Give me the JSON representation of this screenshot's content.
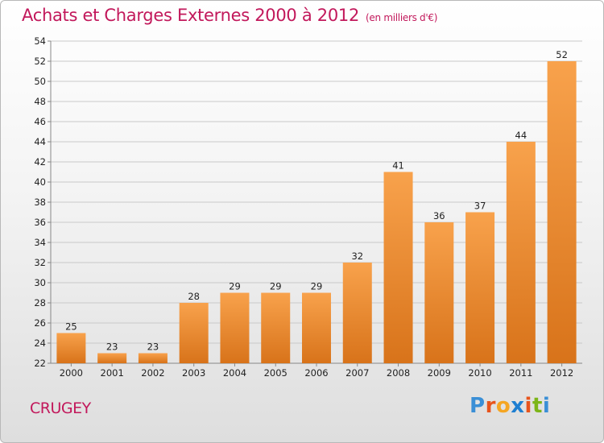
{
  "header": {
    "title": "Achats et Charges Externes 2000 à 2012",
    "subtitle": "(en milliers d'€)"
  },
  "footer": {
    "commune": "CRUGEY",
    "logo_letters": [
      "P",
      "r",
      "o",
      "x",
      "i",
      "t",
      "i"
    ],
    "logo_colors": [
      "#3a8fd6",
      "#e8541c",
      "#f5a623",
      "#1e7fd1",
      "#e8541c",
      "#7cb518",
      "#3a8fd6"
    ]
  },
  "chart_data": {
    "type": "bar",
    "categories": [
      "2000",
      "2001",
      "2002",
      "2003",
      "2004",
      "2005",
      "2006",
      "2007",
      "2008",
      "2009",
      "2010",
      "2011",
      "2012"
    ],
    "values": [
      25,
      23,
      23,
      28,
      29,
      29,
      29,
      32,
      41,
      36,
      37,
      44,
      52
    ],
    "ylim": [
      22,
      54
    ],
    "yticks": [
      22,
      24,
      26,
      28,
      30,
      32,
      34,
      36,
      38,
      40,
      42,
      44,
      46,
      48,
      50,
      52,
      54
    ],
    "grid": true,
    "bar_color_light": "#f8a24c",
    "bar_color_dark": "#d8731a"
  }
}
